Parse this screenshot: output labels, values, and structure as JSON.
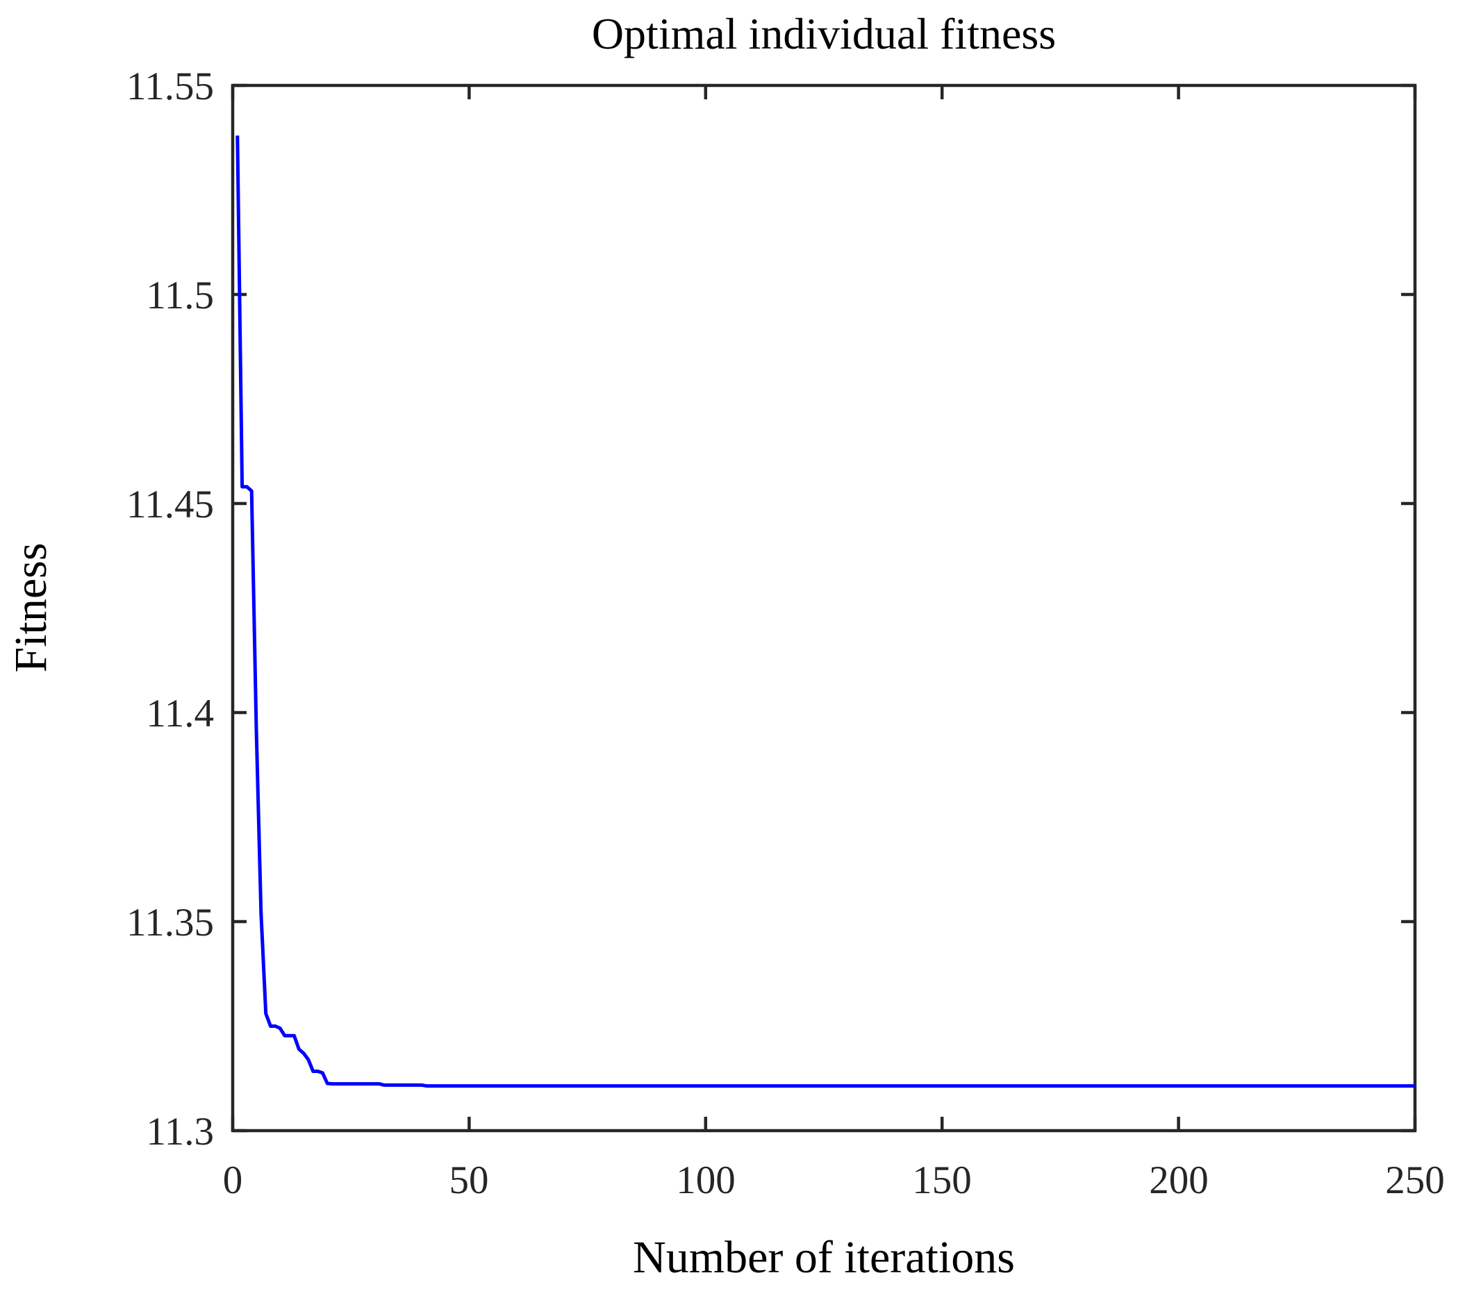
{
  "chart_data": {
    "type": "line",
    "title": "Optimal individual fitness",
    "xlabel": "Number of iterations",
    "ylabel": "Fitness",
    "xlim": [
      0,
      250
    ],
    "ylim": [
      11.3,
      11.55
    ],
    "xticks": [
      0,
      50,
      100,
      150,
      200,
      250
    ],
    "yticks": [
      11.3,
      11.35,
      11.4,
      11.45,
      11.5,
      11.55
    ],
    "xtick_labels": [
      "0",
      "50",
      "100",
      "150",
      "200",
      "250"
    ],
    "ytick_labels": [
      "11.3",
      "11.35",
      "11.4",
      "11.45",
      "11.5",
      "11.55"
    ],
    "grid": false,
    "legend": "none",
    "box": true,
    "tick_direction": "in",
    "line_color": "#0000FF",
    "axis_color": "#262626",
    "series": [
      {
        "name": "Optimal individual fitness",
        "points": [
          [
            1,
            11.538
          ],
          [
            2,
            11.454
          ],
          [
            3,
            11.454
          ],
          [
            4,
            11.453
          ],
          [
            5,
            11.396
          ],
          [
            6,
            11.352
          ],
          [
            7,
            11.328
          ],
          [
            8,
            11.325
          ],
          [
            9,
            11.325
          ],
          [
            10,
            11.3245
          ],
          [
            11,
            11.3227
          ],
          [
            12,
            11.3227
          ],
          [
            13,
            11.3227
          ],
          [
            14,
            11.3195
          ],
          [
            15,
            11.3185
          ],
          [
            16,
            11.317
          ],
          [
            17,
            11.3142
          ],
          [
            18,
            11.3142
          ],
          [
            19,
            11.3138
          ],
          [
            20,
            11.3113
          ],
          [
            21,
            11.3112
          ],
          [
            31,
            11.3112
          ],
          [
            32,
            11.3109
          ],
          [
            40,
            11.3109
          ],
          [
            41,
            11.3107
          ],
          [
            250,
            11.3107
          ]
        ]
      }
    ]
  }
}
